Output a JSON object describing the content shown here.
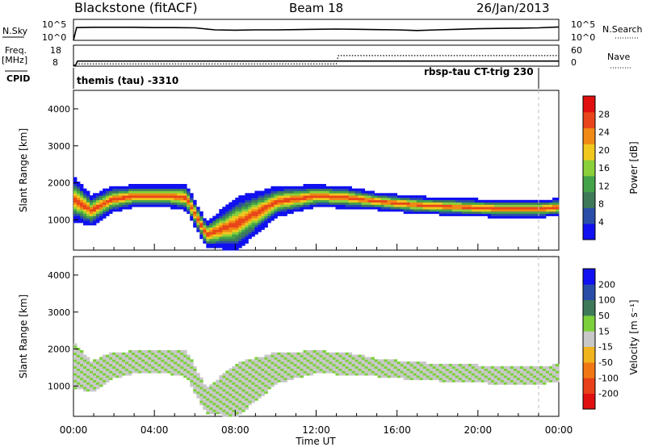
{
  "header": {
    "station": "Blackstone (fitACF)",
    "beam": "Beam 18",
    "date": "26/Jan/2013"
  },
  "left_labels": {
    "nsky": "N.Sky",
    "freq_top": "Freq.",
    "freq_unit": "[MHz]",
    "cpid": "CPID"
  },
  "right_labels": {
    "nsearch": "N.Search",
    "nave": "Nave"
  },
  "cpid_segments": [
    {
      "label": "themis (tau) -3310"
    },
    {
      "label": "rbsp-tau CT-trig 230"
    }
  ],
  "colors": {
    "power_scale": [
      "#1010f0",
      "#2a4ea8",
      "#3e7a5a",
      "#43a34a",
      "#8ad03a",
      "#f0c81e",
      "#f08a14",
      "#e8461a",
      "#e01010"
    ],
    "velocity_scale": [
      "#1010f0",
      "#2a4ea8",
      "#3e7a5a",
      "#7cd03a",
      "#c8c8c8",
      "#f0b41e",
      "#f07814",
      "#e84018",
      "#e01010"
    ]
  },
  "chart_data": [
    {
      "type": "line",
      "title": "N.Sky / N.Search",
      "ylabel": "N.Sky",
      "ylabel_right": "N.Search",
      "y_ticks": [
        "10^0",
        "10^5"
      ],
      "y_ticks_right": [
        "10^0",
        "10^5"
      ],
      "x": [
        0,
        0.15,
        1,
        2,
        3,
        4,
        5,
        6,
        7,
        8,
        9,
        10,
        11,
        12,
        13,
        14,
        15,
        16,
        17,
        18,
        19,
        20,
        21,
        22,
        23,
        24
      ],
      "series": [
        {
          "name": "N.Sky",
          "values": [
            0.0,
            4.4,
            4.5,
            4.5,
            4.5,
            4.4,
            4.4,
            4.3,
            3.6,
            3.5,
            3.6,
            3.6,
            3.7,
            3.8,
            3.9,
            3.8,
            3.7,
            3.6,
            3.4,
            3.6,
            3.8,
            4.0,
            4.1,
            4.2,
            4.3,
            4.6
          ]
        }
      ]
    },
    {
      "type": "line",
      "title": "Freq. / Nave",
      "ylabel": "Freq. [MHz]",
      "ylabel_right": "Nave",
      "y_ticks": [
        "8",
        "18"
      ],
      "y_ticks_right": [
        "0",
        "60"
      ],
      "x": [
        0,
        0.1,
        0.2,
        13.0,
        13.1,
        24
      ],
      "series": [
        {
          "name": "Freq.",
          "values": [
            8.0,
            8.0,
            11.3,
            11.3,
            11.3,
            11.3
          ]
        },
        {
          "name": "Nave",
          "values": [
            0,
            5,
            5,
            5,
            33,
            33
          ]
        }
      ]
    },
    {
      "type": "heatmap",
      "title": "Power [dB]",
      "xlabel": "Time UT",
      "ylabel": "Slant Range [km]",
      "x_ticks": [
        "00:00",
        "04:00",
        "08:00",
        "12:00",
        "16:00",
        "20:00",
        "00:00"
      ],
      "xlim": [
        0,
        24
      ],
      "ylim": [
        180,
        4500
      ],
      "y_ticks": [
        1000,
        2000,
        3000,
        4000
      ],
      "colorbar_label": "Power [dB]",
      "colorbar_ticks": [
        4,
        8,
        12,
        16,
        20,
        24,
        28
      ],
      "colorbar_range": [
        0,
        32
      ]
    },
    {
      "type": "heatmap",
      "title": "Velocity [m s^-1]",
      "xlabel": "Time UT",
      "ylabel": "Slant Range [km]",
      "x_ticks": [
        "00:00",
        "04:00",
        "08:00",
        "12:00",
        "16:00",
        "20:00",
        "00:00"
      ],
      "xlim": [
        0,
        24
      ],
      "ylim": [
        180,
        4500
      ],
      "y_ticks": [
        1000,
        2000,
        3000,
        4000
      ],
      "colorbar_label": "Velocity [m s⁻¹]",
      "colorbar_ticks": [
        200,
        100,
        50,
        15,
        -15,
        -50,
        -100,
        -200
      ]
    }
  ],
  "x_axis": {
    "ticks": [
      "00:00",
      "04:00",
      "08:00",
      "12:00",
      "16:00",
      "20:00",
      "00:00"
    ],
    "label": "Time UT"
  }
}
